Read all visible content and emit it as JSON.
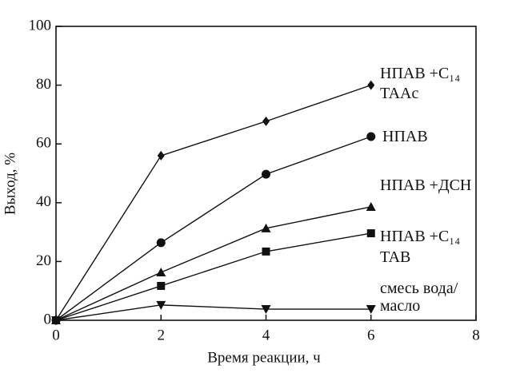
{
  "chart_data": {
    "type": "line",
    "xlabel": "Время реакции, ч",
    "ylabel": "Выход, %",
    "x": [
      0,
      2,
      4,
      6
    ],
    "xlim": [
      0,
      8
    ],
    "xticks": [
      0,
      2,
      4,
      6,
      8
    ],
    "ylim": [
      0,
      100
    ],
    "yticks": [
      0,
      20,
      40,
      60,
      80,
      100
    ],
    "series": [
      {
        "name": "НПАВ +C₁₄ TAAc",
        "color": "#111111",
        "marker": "diamond",
        "values": [
          0,
          56,
          67.7,
          80
        ]
      },
      {
        "name": "НПАВ",
        "color": "#111111",
        "marker": "circle",
        "values": [
          0,
          26.4,
          49.7,
          62.5
        ]
      },
      {
        "name": "НПАВ +ДСН",
        "color": "#111111",
        "marker": "triangle",
        "values": [
          0,
          16.3,
          31.3,
          38.6
        ]
      },
      {
        "name": "НПАВ +C₁₄ TAB",
        "color": "#111111",
        "marker": "square",
        "values": [
          0,
          11.7,
          23.4,
          29.6
        ]
      },
      {
        "name": "смесь вода/масло",
        "color": "#111111",
        "marker": "triangle-down",
        "values": [
          0,
          5.2,
          3.8,
          3.8
        ]
      }
    ]
  }
}
